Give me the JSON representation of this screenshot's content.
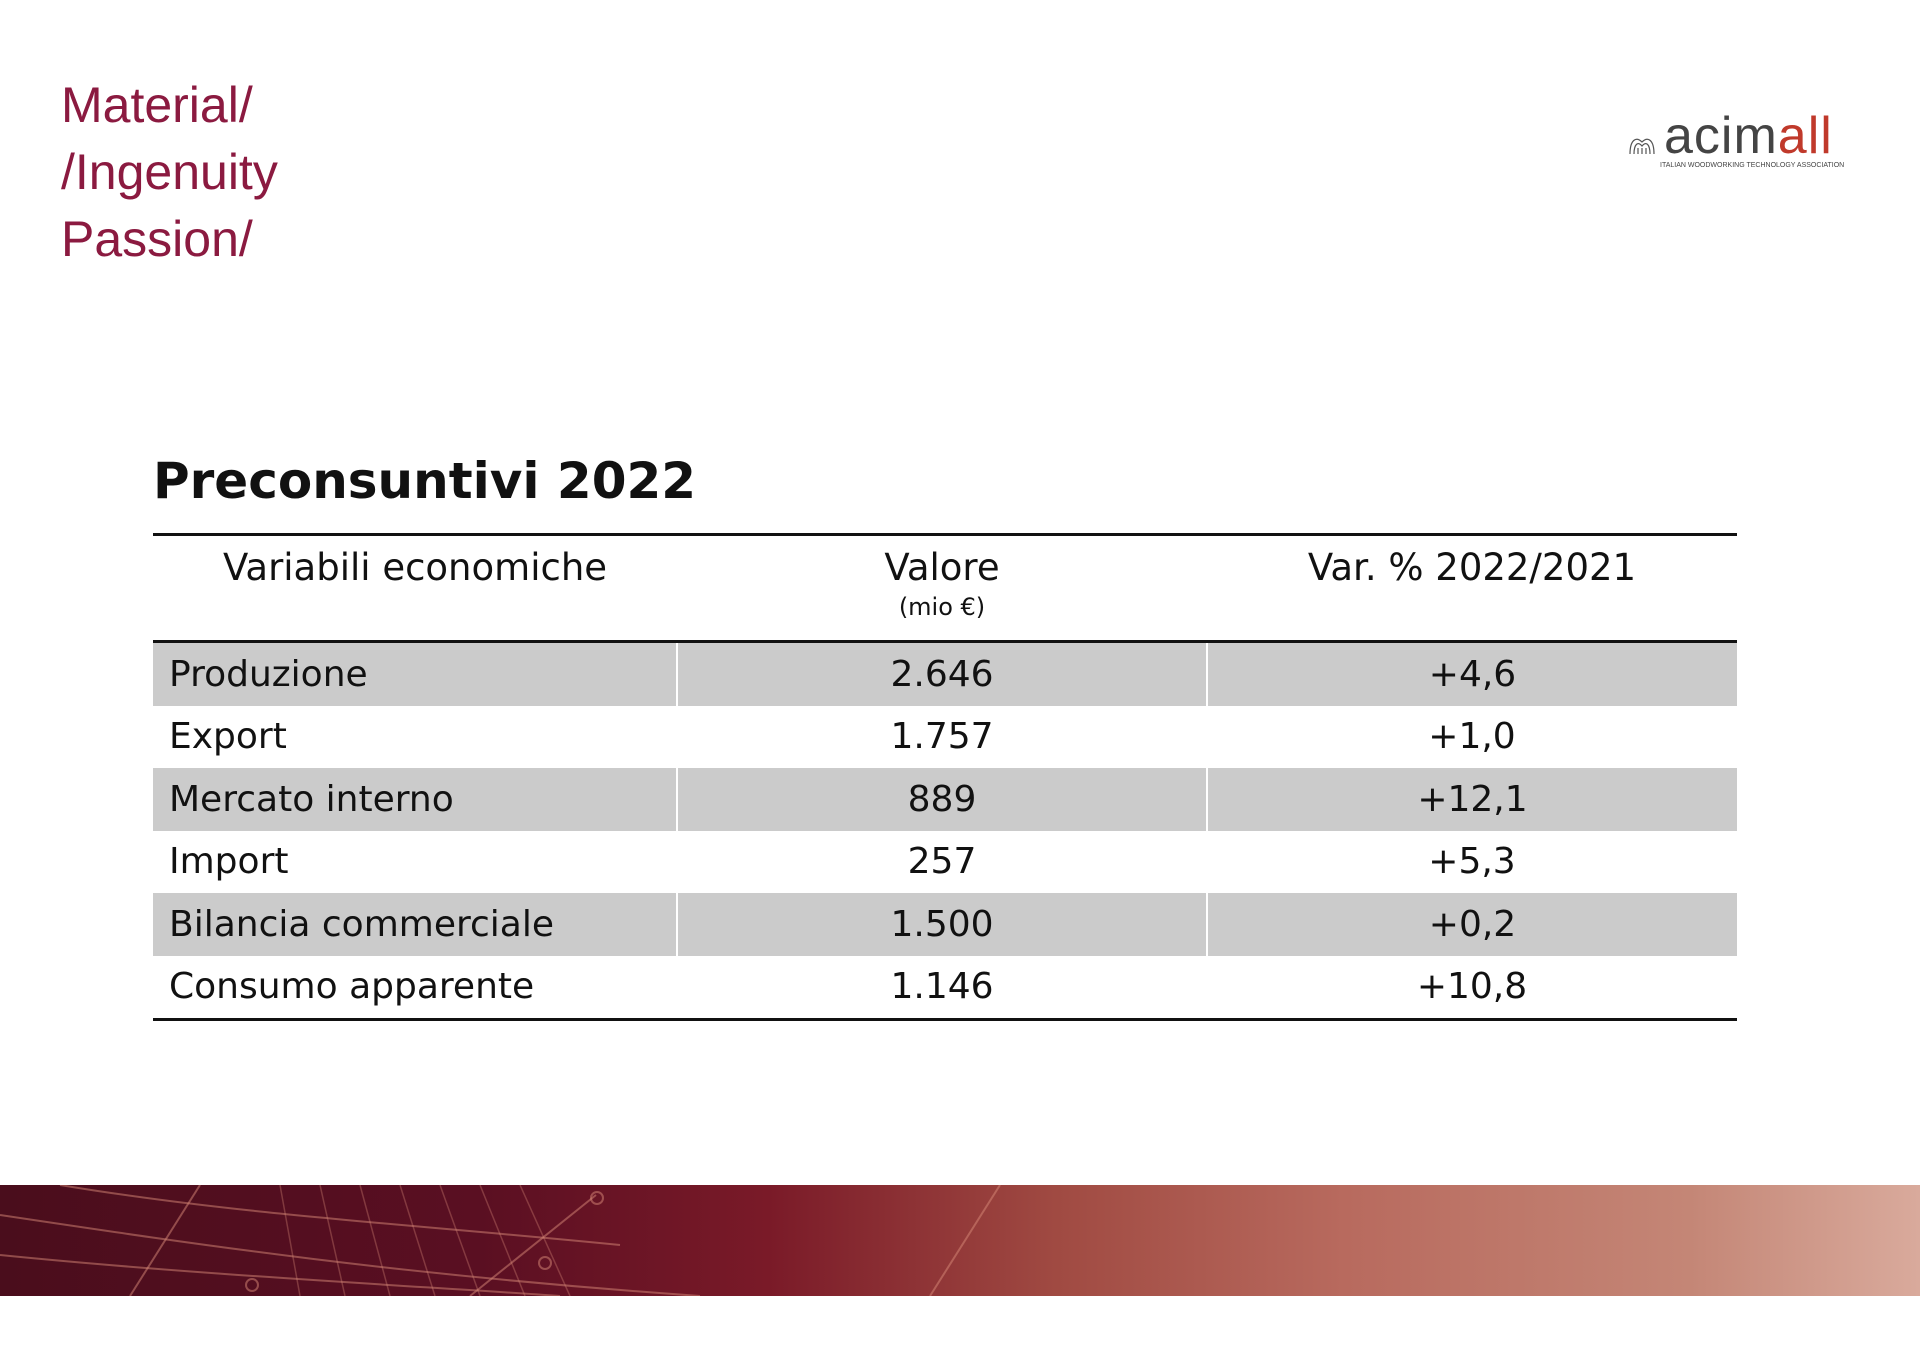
{
  "tagline": [
    "Material/",
    "/Ingenuity",
    "Passion/"
  ],
  "logo": {
    "word_main": "acim",
    "word_accent": "all",
    "subtitle": "ITALIAN WOODWORKING TECHNOLOGY ASSOCIATION"
  },
  "title": "Preconsuntivi 2022",
  "table": {
    "headers": {
      "col1": "Variabili economiche",
      "col2": "Valore",
      "col2_unit": "(mio €)",
      "col3": "Var. % 2022/2021"
    },
    "rows": [
      {
        "name": "Produzione",
        "value": "2.646",
        "change": "+4,6"
      },
      {
        "name": "Export",
        "value": "1.757",
        "change": "+1,0"
      },
      {
        "name": "Mercato interno",
        "value": "889",
        "change": "+12,1"
      },
      {
        "name": "Import",
        "value": "257",
        "change": "+5,3"
      },
      {
        "name": "Bilancia commerciale",
        "value": "1.500",
        "change": "+0,2"
      },
      {
        "name": "Consumo apparente",
        "value": "1.146",
        "change": "+10,8"
      }
    ]
  }
}
